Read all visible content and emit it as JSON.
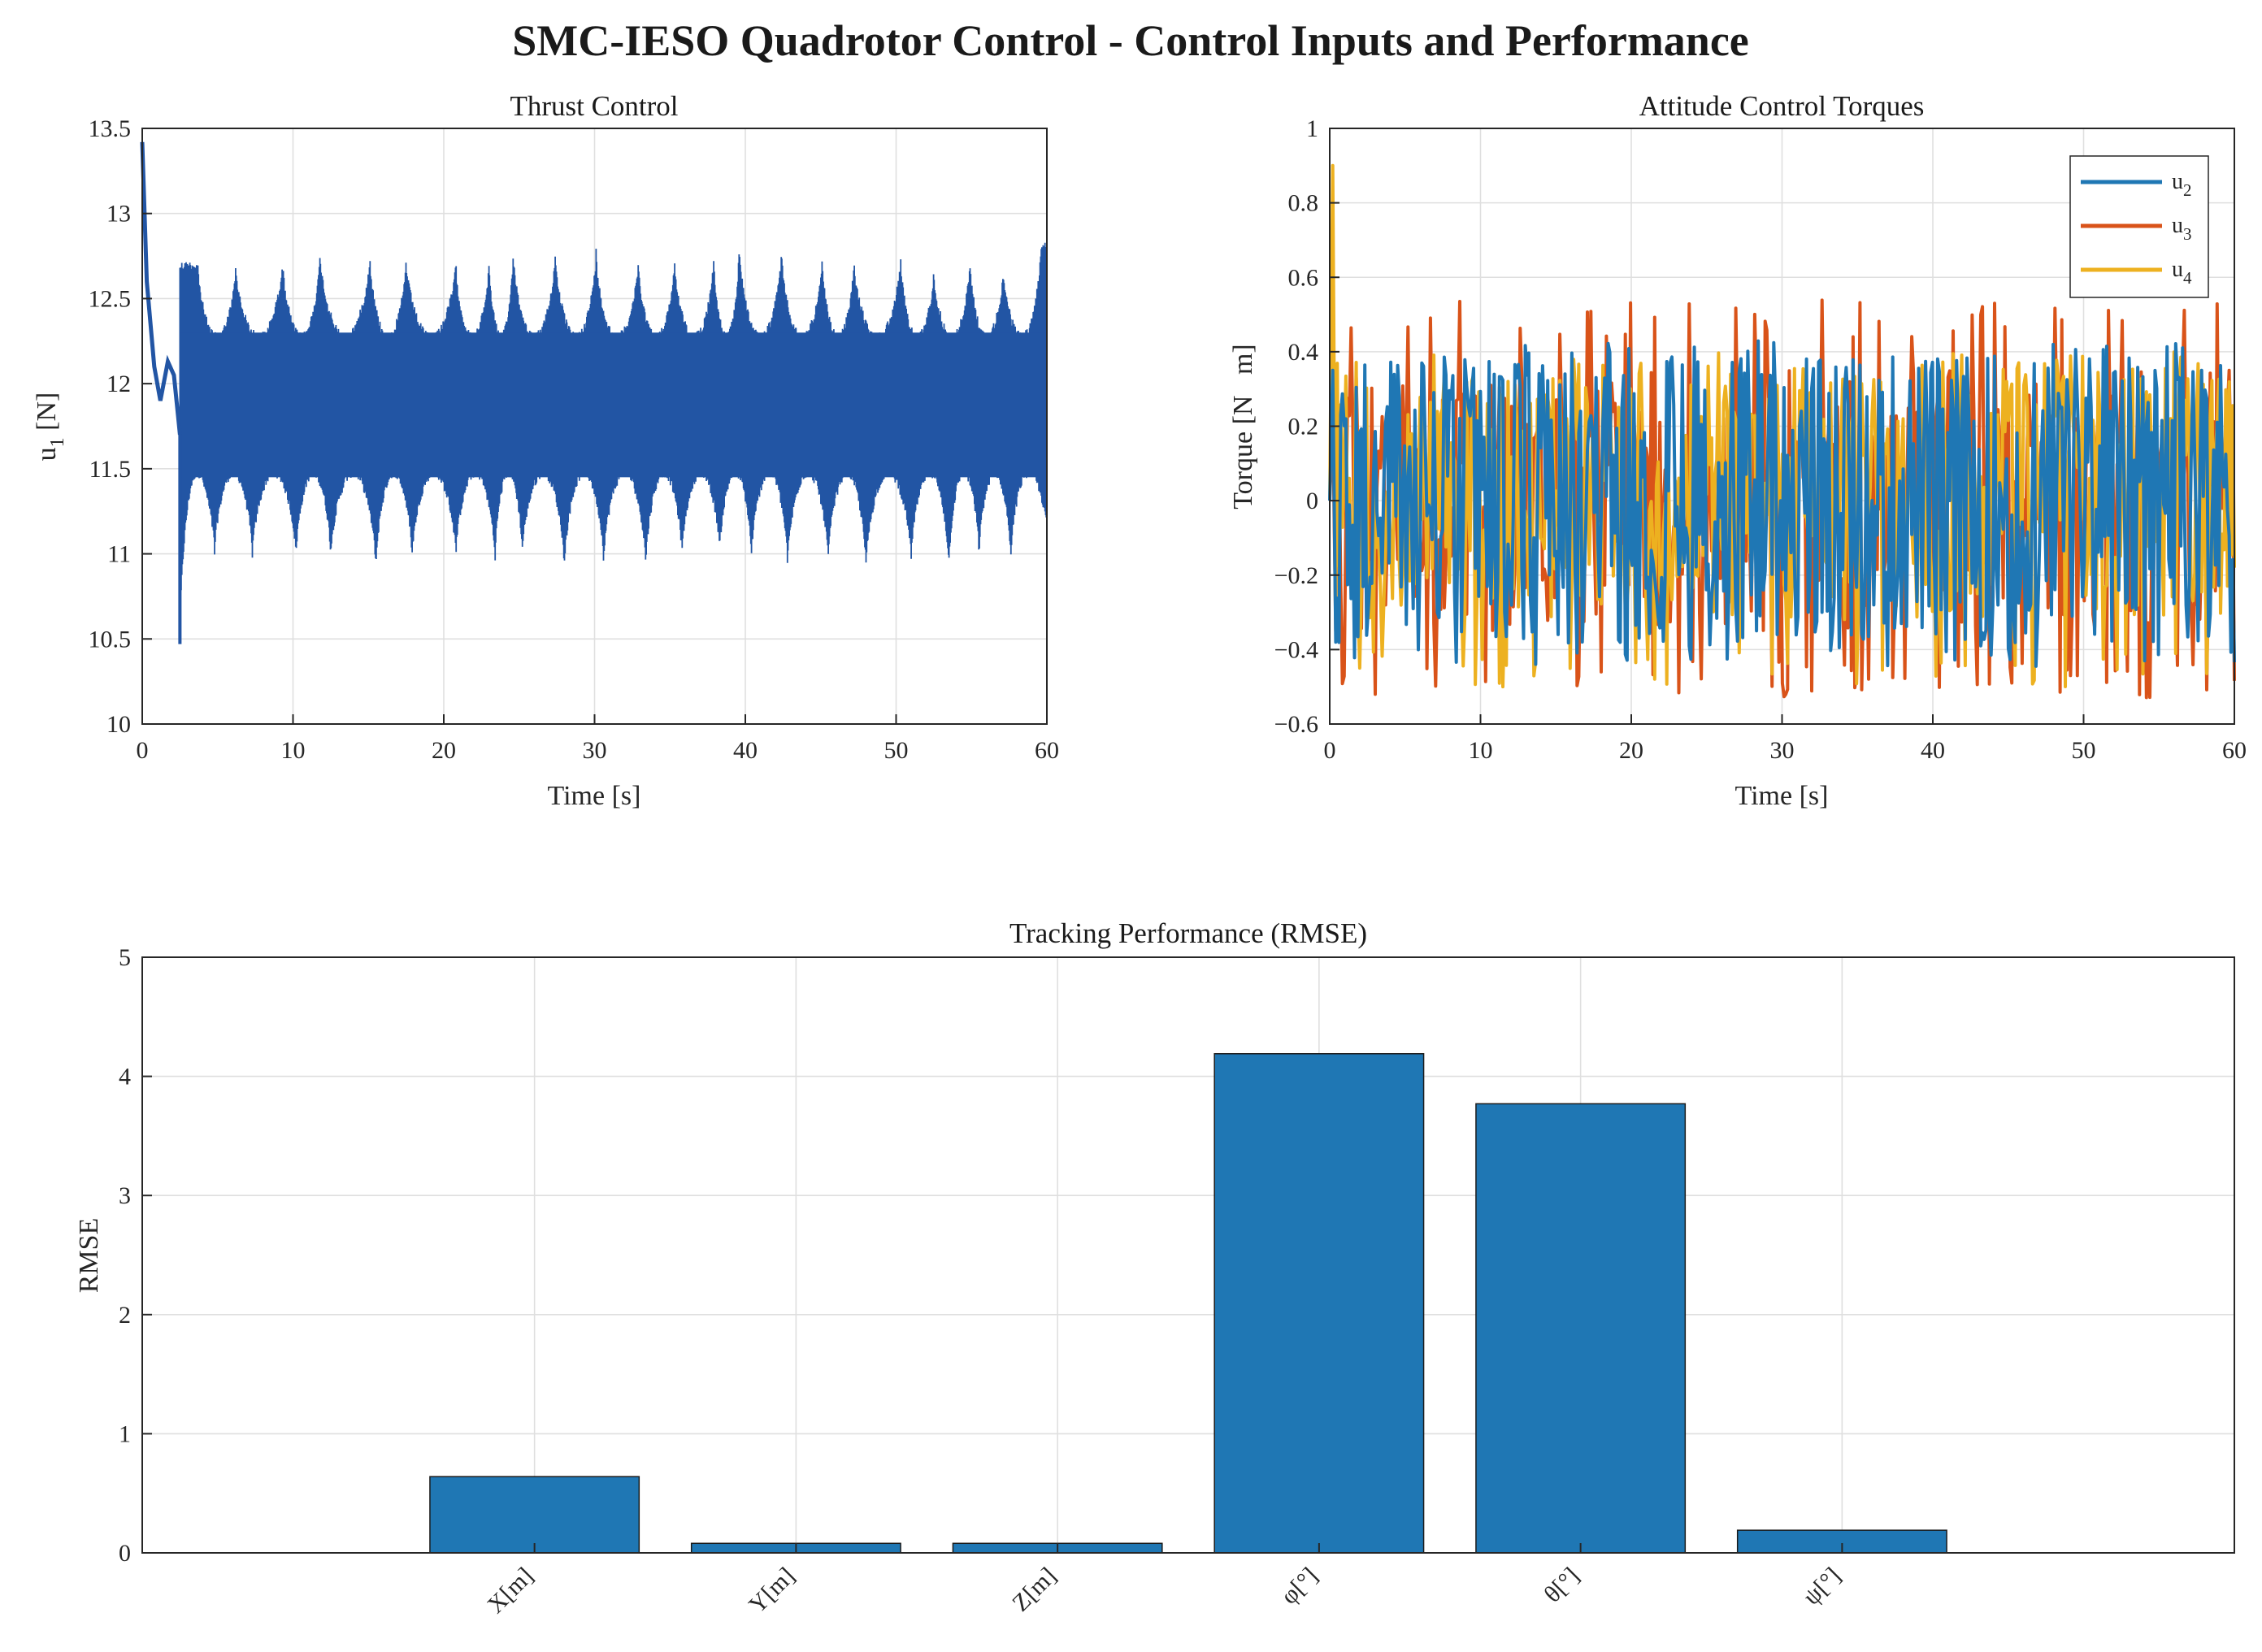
{
  "figure_title": "SMC-IESO Quadrotor Control - Control Inputs and Performance",
  "chart_data": [
    {
      "id": "thrust",
      "type": "line",
      "title": "Thrust Control",
      "xlabel": "Time [s]",
      "ylabel_main": "u",
      "ylabel_sub": "1",
      "ylabel_unit": " [N]",
      "xlim": [
        0,
        60
      ],
      "ylim": [
        10,
        13.5
      ],
      "xticks": [
        0,
        10,
        20,
        30,
        40,
        50,
        60
      ],
      "yticks": [
        10,
        10.5,
        11,
        11.5,
        12,
        12.5,
        13,
        13.5
      ],
      "grid": true,
      "series": [
        {
          "name": "u1",
          "color": "#2255a4",
          "initial_transient": [
            [
              0,
              13.42
            ],
            [
              0.3,
              12.6
            ],
            [
              0.8,
              12.1
            ],
            [
              1.2,
              11.9
            ],
            [
              1.7,
              12.13
            ],
            [
              2.1,
              12.05
            ],
            [
              2.5,
              11.7
            ]
          ],
          "mean": 11.85,
          "oscillation_band": [
            11.45,
            12.3
          ],
          "envelope_peaks": [
            [
              2.5,
              10.47
            ],
            [
              3.7,
              12.72
            ],
            [
              4.8,
              10.97
            ],
            [
              6.2,
              12.71
            ],
            [
              7.3,
              10.95
            ],
            [
              9.3,
              12.76
            ],
            [
              10.2,
              10.95
            ],
            [
              11.8,
              12.8
            ],
            [
              12.5,
              10.96
            ],
            [
              15.1,
              12.78
            ],
            [
              15.5,
              10.88
            ],
            [
              17.5,
              12.76
            ],
            [
              17.9,
              10.95
            ],
            [
              20.8,
              12.74
            ],
            [
              20.8,
              10.96
            ],
            [
              23,
              12.75
            ],
            [
              23.4,
              10.93
            ],
            [
              24.6,
              12.82
            ],
            [
              25.2,
              10.97
            ],
            [
              27.4,
              12.8
            ],
            [
              28,
              10.89
            ],
            [
              30.1,
              12.8
            ],
            [
              30.6,
              10.93
            ],
            [
              32.9,
              12.75
            ],
            [
              33.4,
              10.9
            ],
            [
              35.3,
              12.76
            ],
            [
              35.8,
              10.96
            ],
            [
              37.9,
              12.77
            ],
            [
              38.3,
              10.98
            ],
            [
              39.6,
              12.85
            ],
            [
              40.4,
              10.94
            ],
            [
              42.4,
              12.8
            ],
            [
              42.8,
              10.9
            ],
            [
              45.1,
              12.75
            ],
            [
              45.5,
              10.93
            ],
            [
              47.2,
              12.75
            ],
            [
              48,
              10.88
            ],
            [
              50.3,
              12.78
            ],
            [
              51,
              10.94
            ],
            [
              52.5,
              12.7
            ],
            [
              53.5,
              10.88
            ],
            [
              54.9,
              12.76
            ],
            [
              55.5,
              10.96
            ],
            [
              57.1,
              12.7
            ],
            [
              57.6,
              10.93
            ],
            [
              59.6,
              12.84
            ],
            [
              60,
              11.1
            ]
          ]
        }
      ]
    },
    {
      "id": "attitude",
      "type": "line",
      "title": "Attitude Control Torques",
      "xlabel": "Time [s]",
      "ylabel": "Torque [N   m]",
      "xlim": [
        0,
        60
      ],
      "ylim": [
        -0.6,
        1
      ],
      "xticks": [
        0,
        10,
        20,
        30,
        40,
        50,
        60
      ],
      "yticks": [
        -0.6,
        -0.4,
        -0.2,
        0,
        0.2,
        0.4,
        0.6,
        0.8,
        1
      ],
      "grid": true,
      "legend_location": "top-right",
      "series": [
        {
          "name": "u",
          "sub": "2",
          "color": "#1f77b4",
          "initial_peak": 0.35,
          "band": [
            -0.38,
            0.4
          ],
          "spike_range": [
            -0.45,
            0.43
          ]
        },
        {
          "name": "u",
          "sub": "3",
          "color": "#d95319",
          "initial_peak": 0.23,
          "band": [
            -0.35,
            0.35
          ],
          "spike_range": [
            -0.53,
            0.54
          ]
        },
        {
          "name": "u",
          "sub": "4",
          "color": "#edb120",
          "initial_peak": 0.9,
          "band": [
            -0.32,
            0.33
          ],
          "spike_range": [
            -0.5,
            0.4
          ]
        }
      ]
    },
    {
      "id": "rmse",
      "type": "bar",
      "title": "Tracking Performance (RMSE)",
      "xlabel": "",
      "ylabel": "RMSE",
      "categories": [
        "X[m]",
        "Y[m]",
        "Z[m]",
        "φ[°]",
        "θ[°]",
        "ψ[°]"
      ],
      "values": [
        0.64,
        0.08,
        0.08,
        4.19,
        3.77,
        0.19
      ],
      "ylim": [
        0,
        5
      ],
      "yticks": [
        0,
        1,
        2,
        3,
        4,
        5
      ],
      "grid": true,
      "bar_color": "#1f77b4"
    }
  ]
}
